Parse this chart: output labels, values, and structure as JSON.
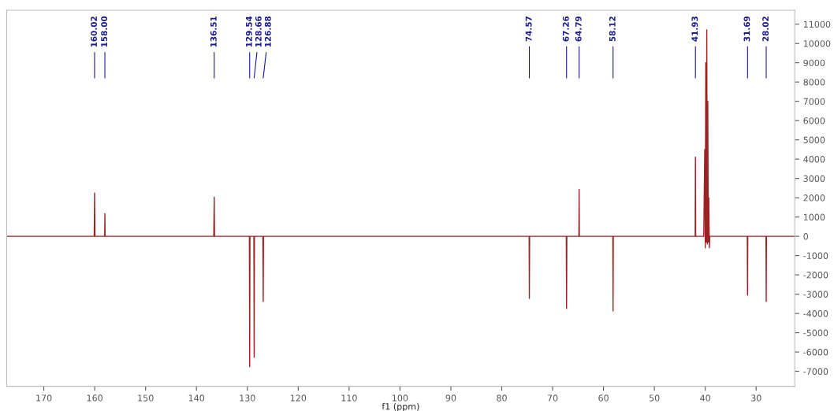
{
  "chart_data": {
    "type": "line",
    "xlabel": "f1 (ppm)",
    "xlim": [
      177.3,
      22.4
    ],
    "xticks": [
      170,
      160,
      150,
      140,
      130,
      120,
      110,
      100,
      90,
      80,
      70,
      60,
      50,
      40,
      30
    ],
    "ylim": [
      -7780,
      11720
    ],
    "yticks": [
      -7000,
      -6000,
      -5000,
      -4000,
      -3000,
      -2000,
      -1000,
      0,
      1000,
      2000,
      3000,
      4000,
      5000,
      6000,
      7000,
      8000,
      9000,
      10000,
      11000
    ],
    "grid": false,
    "legend": false,
    "marker": "none",
    "line_style": "solid",
    "series": [
      {
        "color": "#9b2323",
        "x": [
          177.3,
          160.1,
          160.02,
          159.95,
          158.05,
          158.0,
          157.95,
          136.6,
          136.51,
          136.45,
          129.6,
          129.54,
          129.48,
          128.72,
          128.66,
          128.6,
          126.95,
          126.88,
          126.82,
          74.62,
          74.57,
          74.52,
          67.32,
          67.26,
          67.2,
          64.84,
          64.79,
          64.74,
          58.17,
          58.12,
          58.07,
          41.98,
          41.93,
          41.88,
          40.3,
          40.1,
          40.0,
          39.9,
          39.8,
          39.7,
          39.6,
          39.5,
          39.4,
          39.3,
          39.2,
          39.1,
          31.74,
          31.69,
          31.64,
          28.07,
          28.02,
          27.97,
          22.4
        ],
        "values": [
          0,
          0,
          2240,
          0,
          0,
          1180,
          0,
          0,
          2030,
          0,
          0,
          -6760,
          0,
          0,
          -6270,
          0,
          0,
          -3380,
          0,
          0,
          -3220,
          0,
          0,
          -3740,
          0,
          0,
          2440,
          0,
          0,
          -3870,
          0,
          0,
          4110,
          0,
          0,
          4500,
          -600,
          9000,
          -300,
          10700,
          -400,
          7000,
          -300,
          2000,
          -600,
          0,
          0,
          -3050,
          0,
          0,
          -3380,
          0,
          0
        ]
      }
    ],
    "annotations": [
      {
        "text": "160.02",
        "x": 160.02
      },
      {
        "text": "158.00",
        "x": 158.0
      },
      {
        "text": "136.51",
        "x": 136.51
      },
      {
        "text": "129.54",
        "x": 129.54
      },
      {
        "text": "128.66",
        "x": 128.66
      },
      {
        "text": "126.88",
        "x": 126.88
      },
      {
        "text": "74.57",
        "x": 74.57
      },
      {
        "text": "67.26",
        "x": 67.26
      },
      {
        "text": "64.79",
        "x": 64.79
      },
      {
        "text": "58.12",
        "x": 58.12
      },
      {
        "text": "41.93",
        "x": 41.93
      },
      {
        "text": "31.69",
        "x": 31.69
      },
      {
        "text": "28.02",
        "x": 28.02
      }
    ]
  }
}
